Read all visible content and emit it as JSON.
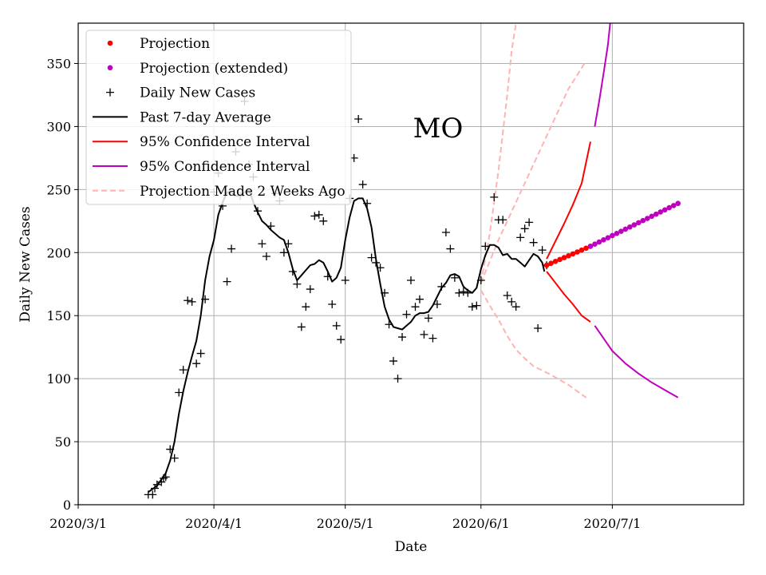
{
  "chart_data": {
    "type": "line",
    "title": "MO",
    "xlabel": "Date",
    "ylabel": "Daily New Cases",
    "xlim": [
      0,
      152
    ],
    "ylim": [
      0,
      382
    ],
    "grid": true,
    "legend_position": "top-left",
    "x_ticks": [
      {
        "day": 0,
        "label": "2020/3/1"
      },
      {
        "day": 31,
        "label": "2020/4/1"
      },
      {
        "day": 61,
        "label": "2020/5/1"
      },
      {
        "day": 92,
        "label": "2020/6/1"
      },
      {
        "day": 122,
        "label": "2020/7/1"
      }
    ],
    "y_ticks": [
      0,
      50,
      100,
      150,
      200,
      250,
      300,
      350
    ],
    "legend": [
      {
        "key": "projection",
        "label": "Projection",
        "marker": "dot",
        "color": "#ff0000"
      },
      {
        "key": "projection_ext",
        "label": "Projection (extended)",
        "marker": "dot",
        "color": "#bf00bf"
      },
      {
        "key": "daily",
        "label": "Daily New Cases",
        "marker": "plus",
        "color": "#000000"
      },
      {
        "key": "avg",
        "label": "Past 7-day Average",
        "marker": "line",
        "color": "#000000"
      },
      {
        "key": "ci",
        "label": "95% Confidence Interval",
        "marker": "line",
        "color": "#ff0000"
      },
      {
        "key": "ci_ext",
        "label": "95% Confidence Interval",
        "marker": "line",
        "color": "#bf00bf"
      },
      {
        "key": "old",
        "label": "Projection Made 2 Weeks Ago",
        "marker": "dash",
        "color": "#ffb3b3"
      }
    ],
    "series": {
      "daily_new_cases": [
        [
          16,
          8
        ],
        [
          17,
          8
        ],
        [
          17.5,
          13
        ],
        [
          18,
          16
        ],
        [
          19,
          18
        ],
        [
          19.5,
          21
        ],
        [
          20,
          22
        ],
        [
          21,
          44
        ],
        [
          22,
          37
        ],
        [
          23,
          89
        ],
        [
          24,
          107
        ],
        [
          25,
          162
        ],
        [
          26,
          161
        ],
        [
          27,
          112
        ],
        [
          28,
          120
        ],
        [
          29,
          163
        ],
        [
          31,
          248
        ],
        [
          32,
          263
        ],
        [
          33,
          237
        ],
        [
          34,
          177
        ],
        [
          35,
          203
        ],
        [
          36,
          280
        ],
        [
          37,
          245
        ],
        [
          38,
          320
        ],
        [
          39,
          270
        ],
        [
          40,
          260
        ],
        [
          41,
          233
        ],
        [
          42,
          207
        ],
        [
          43,
          197
        ],
        [
          44,
          221
        ],
        [
          45,
          247
        ],
        [
          46,
          241
        ],
        [
          47,
          200
        ],
        [
          48,
          207
        ],
        [
          49,
          185
        ],
        [
          50,
          175
        ],
        [
          51,
          141
        ],
        [
          52,
          157
        ],
        [
          53,
          171
        ],
        [
          54,
          229
        ],
        [
          55,
          230
        ],
        [
          56,
          225
        ],
        [
          57,
          181
        ],
        [
          58,
          159
        ],
        [
          59,
          142
        ],
        [
          60,
          131
        ],
        [
          61,
          178
        ],
        [
          62,
          243
        ],
        [
          63,
          275
        ],
        [
          64,
          306
        ],
        [
          65,
          254
        ],
        [
          66,
          239
        ],
        [
          67,
          196
        ],
        [
          68,
          192
        ],
        [
          69,
          188
        ],
        [
          70,
          168
        ],
        [
          71,
          143
        ],
        [
          72,
          114
        ],
        [
          73,
          100
        ],
        [
          74,
          133
        ],
        [
          75,
          151
        ],
        [
          76,
          178
        ],
        [
          77,
          157
        ],
        [
          78,
          163
        ],
        [
          79,
          135
        ],
        [
          80,
          148
        ],
        [
          81,
          132
        ],
        [
          82,
          159
        ],
        [
          83,
          173
        ],
        [
          84,
          216
        ],
        [
          85,
          203
        ],
        [
          86,
          180
        ],
        [
          87,
          168
        ],
        [
          88,
          169
        ],
        [
          89,
          168
        ],
        [
          90,
          157
        ],
        [
          91,
          158
        ],
        [
          92,
          178
        ],
        [
          93,
          205
        ],
        [
          95,
          244
        ],
        [
          96,
          226
        ],
        [
          97,
          226
        ],
        [
          98,
          166
        ],
        [
          99,
          161
        ],
        [
          100,
          157
        ],
        [
          101,
          212
        ],
        [
          102,
          219
        ],
        [
          103,
          224
        ],
        [
          104,
          208
        ],
        [
          105,
          140
        ],
        [
          106,
          202
        ],
        [
          107,
          190
        ]
      ],
      "past_7day_average": [
        [
          16,
          10
        ],
        [
          18,
          15
        ],
        [
          20,
          25
        ],
        [
          21,
          35
        ],
        [
          22,
          50
        ],
        [
          23,
          72
        ],
        [
          24,
          90
        ],
        [
          25,
          105
        ],
        [
          26,
          118
        ],
        [
          27,
          130
        ],
        [
          28,
          150
        ],
        [
          29,
          178
        ],
        [
          30,
          197
        ],
        [
          31,
          210
        ],
        [
          32,
          230
        ],
        [
          33,
          240
        ],
        [
          34,
          248
        ],
        [
          35,
          248
        ],
        [
          36,
          245
        ],
        [
          37,
          245
        ],
        [
          38,
          248
        ],
        [
          39,
          250
        ],
        [
          40,
          240
        ],
        [
          41,
          232
        ],
        [
          42,
          225
        ],
        [
          43,
          222
        ],
        [
          44,
          218
        ],
        [
          45,
          215
        ],
        [
          46,
          212
        ],
        [
          47,
          210
        ],
        [
          48,
          200
        ],
        [
          49,
          187
        ],
        [
          50,
          178
        ],
        [
          51,
          182
        ],
        [
          52,
          186
        ],
        [
          53,
          190
        ],
        [
          54,
          191
        ],
        [
          55,
          194
        ],
        [
          56,
          192
        ],
        [
          57,
          185
        ],
        [
          58,
          177
        ],
        [
          59,
          180
        ],
        [
          60,
          188
        ],
        [
          61,
          210
        ],
        [
          62,
          228
        ],
        [
          63,
          241
        ],
        [
          64,
          243
        ],
        [
          65,
          243
        ],
        [
          66,
          235
        ],
        [
          67,
          220
        ],
        [
          68,
          195
        ],
        [
          69,
          175
        ],
        [
          70,
          157
        ],
        [
          71,
          147
        ],
        [
          72,
          141
        ],
        [
          73,
          140
        ],
        [
          74,
          139
        ],
        [
          75,
          142
        ],
        [
          76,
          145
        ],
        [
          77,
          150
        ],
        [
          78,
          152
        ],
        [
          79,
          152
        ],
        [
          80,
          153
        ],
        [
          81,
          158
        ],
        [
          82,
          165
        ],
        [
          83,
          172
        ],
        [
          84,
          176
        ],
        [
          85,
          182
        ],
        [
          86,
          183
        ],
        [
          87,
          181
        ],
        [
          88,
          173
        ],
        [
          89,
          170
        ],
        [
          90,
          168
        ],
        [
          91,
          172
        ],
        [
          92,
          187
        ],
        [
          93,
          198
        ],
        [
          94,
          206
        ],
        [
          95,
          206
        ],
        [
          96,
          204
        ],
        [
          97,
          198
        ],
        [
          98,
          199
        ],
        [
          99,
          195
        ],
        [
          100,
          195
        ],
        [
          101,
          192
        ],
        [
          102,
          189
        ],
        [
          103,
          194
        ],
        [
          104,
          199
        ],
        [
          105,
          197
        ],
        [
          106,
          192
        ],
        [
          106.5,
          185
        ]
      ],
      "projection": [
        [
          107,
          190
        ],
        [
          108,
          191.5
        ],
        [
          109,
          193
        ],
        [
          110,
          194.5
        ],
        [
          111,
          196
        ],
        [
          112,
          197.5
        ],
        [
          113,
          199
        ],
        [
          114,
          200.5
        ],
        [
          115,
          202
        ],
        [
          116,
          203.5
        ],
        [
          117,
          205
        ]
      ],
      "projection_extended": [
        [
          117,
          205
        ],
        [
          118,
          206.7
        ],
        [
          119,
          208.4
        ],
        [
          120,
          210.1
        ],
        [
          121,
          211.8
        ],
        [
          122,
          213.5
        ],
        [
          123,
          215.2
        ],
        [
          124,
          216.9
        ],
        [
          125,
          218.6
        ],
        [
          126,
          220.3
        ],
        [
          127,
          222
        ],
        [
          128,
          223.7
        ],
        [
          129,
          225.4
        ],
        [
          130,
          227.1
        ],
        [
          131,
          228.8
        ],
        [
          132,
          230.5
        ],
        [
          133,
          232.2
        ],
        [
          134,
          233.9
        ],
        [
          135,
          235.6
        ],
        [
          136,
          237.3
        ],
        [
          137,
          239
        ]
      ],
      "ci_upper": [
        [
          107,
          195
        ],
        [
          109,
          209
        ],
        [
          111,
          223
        ],
        [
          113,
          238
        ],
        [
          115,
          255
        ],
        [
          117,
          288
        ]
      ],
      "ci_lower": [
        [
          107,
          185
        ],
        [
          109,
          176
        ],
        [
          111,
          167
        ],
        [
          113,
          159
        ],
        [
          115,
          150
        ],
        [
          117,
          145
        ]
      ],
      "ci_ext_upper": [
        [
          118,
          300
        ],
        [
          119,
          320
        ],
        [
          120,
          342
        ],
        [
          121,
          365
        ],
        [
          121.5,
          382
        ]
      ],
      "ci_ext_lower": [
        [
          118,
          142
        ],
        [
          120,
          132
        ],
        [
          122,
          122
        ],
        [
          125,
          112
        ],
        [
          128,
          104
        ],
        [
          131,
          97
        ],
        [
          134,
          91
        ],
        [
          137,
          85
        ]
      ],
      "old_projection_high": [
        [
          92,
          176
        ],
        [
          94,
          215
        ],
        [
          96,
          265
        ],
        [
          98,
          325
        ],
        [
          99,
          360
        ],
        [
          100,
          382
        ]
      ],
      "old_projection_mid": [
        [
          92,
          176
        ],
        [
          96,
          210
        ],
        [
          100,
          240
        ],
        [
          104,
          270
        ],
        [
          108,
          300
        ],
        [
          112,
          330
        ],
        [
          116,
          352
        ]
      ],
      "old_projection_low": [
        [
          92,
          170
        ],
        [
          94,
          158
        ],
        [
          96,
          147
        ],
        [
          98,
          134
        ],
        [
          100,
          123
        ],
        [
          102,
          116
        ],
        [
          104,
          110
        ],
        [
          108,
          103
        ],
        [
          112,
          95
        ],
        [
          116,
          85
        ]
      ]
    }
  }
}
